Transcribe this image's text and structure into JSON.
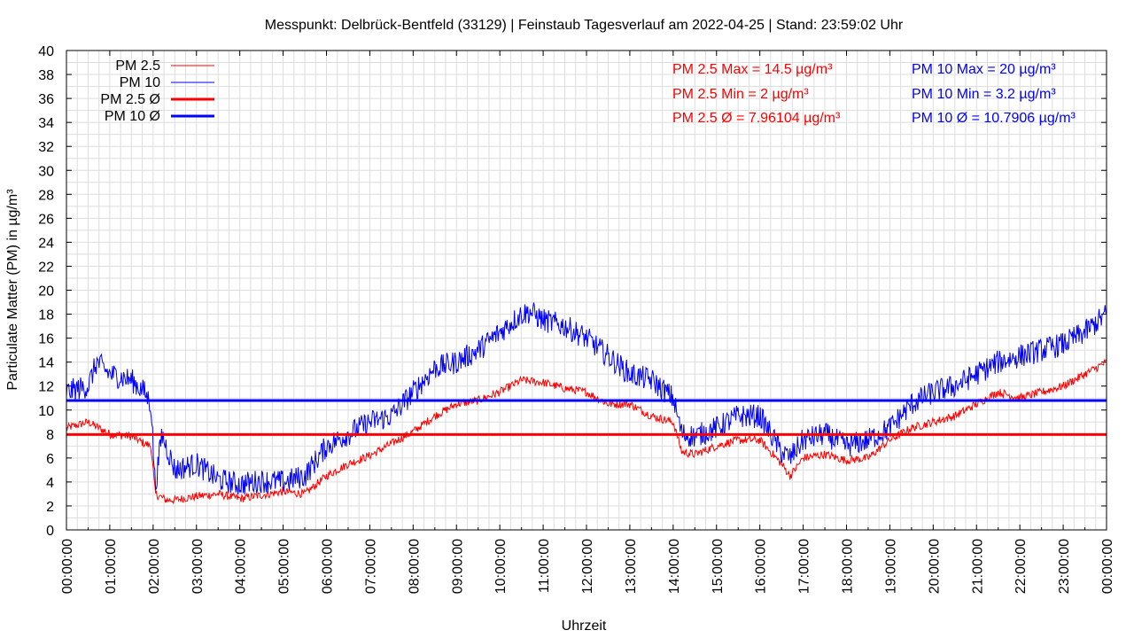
{
  "chart_data": {
    "type": "line",
    "title": "Messpunkt: Delbrück-Bentfeld (33129) | Feinstaub Tagesverlauf am 2022-04-25 | Stand: 23:59:02 Uhr",
    "xlabel": "Uhrzeit",
    "ylabel": "Particulate Matter (PM) in µg/m³",
    "ylim": [
      0,
      40
    ],
    "y_tick_step": 2,
    "x_ticks": [
      "00:00:00",
      "01:00:00",
      "02:00:00",
      "03:00:00",
      "04:00:00",
      "05:00:00",
      "06:00:00",
      "07:00:00",
      "08:00:00",
      "09:00:00",
      "10:00:00",
      "11:00:00",
      "12:00:00",
      "13:00:00",
      "14:00:00",
      "15:00:00",
      "16:00:00",
      "17:00:00",
      "18:00:00",
      "19:00:00",
      "20:00:00",
      "21:00:00",
      "22:00:00",
      "23:00:00",
      "00:00:00"
    ],
    "grid": true,
    "legend_position": "top-left",
    "series": [
      {
        "name": "PM 2.5",
        "color": "#ff0000",
        "hours": [
          0,
          0.5,
          1,
          1.5,
          1.8,
          1.95,
          2.05,
          2.3,
          2.5,
          3,
          3.5,
          4,
          4.5,
          5,
          5.5,
          6,
          6.5,
          7,
          7.5,
          8,
          8.5,
          9,
          9.5,
          10,
          10.5,
          11,
          11.5,
          12,
          12.5,
          13,
          13.5,
          14,
          14.2,
          14.5,
          15,
          15.5,
          16,
          16.5,
          16.7,
          17,
          17.5,
          18,
          18.5,
          19,
          19.5,
          20,
          20.5,
          21,
          21.5,
          22,
          22.5,
          23,
          23.5,
          24
        ],
        "values": [
          8.5,
          9,
          8,
          7.8,
          7.2,
          7,
          3,
          2.5,
          2.5,
          2.8,
          3,
          2.6,
          2.9,
          3.2,
          3,
          4.5,
          5.5,
          6.2,
          7.2,
          8.2,
          9.5,
          10.5,
          10.8,
          11.5,
          12.5,
          12.3,
          11.8,
          11.5,
          10.5,
          10.5,
          9.5,
          9,
          6.5,
          6.3,
          7,
          7.5,
          7.5,
          5.5,
          4.5,
          6,
          6.3,
          5.8,
          6,
          7.5,
          8.5,
          9,
          9.5,
          10.5,
          11.5,
          11,
          11.5,
          12,
          13,
          14
        ]
      },
      {
        "name": "PM 10",
        "color": "#0000ff",
        "hours": [
          0,
          0.5,
          0.7,
          1,
          1.5,
          1.8,
          1.95,
          2.05,
          2.2,
          2.5,
          3,
          3.5,
          4,
          4.5,
          5,
          5.5,
          6,
          6.5,
          7,
          7.5,
          8,
          8.5,
          9,
          9.5,
          10,
          10.5,
          10.7,
          11,
          11.5,
          12,
          12.5,
          13,
          13.5,
          14,
          14.2,
          14.5,
          15,
          15.5,
          16,
          16.5,
          16.7,
          17,
          17.5,
          18,
          18.5,
          19,
          19.5,
          20,
          20.5,
          21,
          21.5,
          22,
          22.5,
          23,
          23.5,
          24
        ],
        "values": [
          11.5,
          12,
          14,
          13,
          12.5,
          11.5,
          10.5,
          3.5,
          8,
          5,
          5.5,
          4.2,
          3.8,
          4.1,
          4,
          4.5,
          7,
          8,
          9,
          9.5,
          11.5,
          13.5,
          14,
          15,
          16.5,
          18,
          18.2,
          17.5,
          17,
          16,
          14.5,
          13,
          12.5,
          11,
          8,
          7.8,
          8.5,
          9.5,
          9.5,
          6.5,
          6,
          7.5,
          8,
          7,
          7.5,
          8.5,
          10.5,
          11.5,
          12,
          13,
          14,
          14.5,
          15,
          15.5,
          16.5,
          18
        ]
      },
      {
        "name": "PM 2.5 Ø",
        "color": "#ff0000",
        "constant": 7.96104
      },
      {
        "name": "PM 10 Ø",
        "color": "#0000ff",
        "constant": 10.7906
      }
    ],
    "annotations": {
      "pm25": [
        "PM 2.5 Max = 14.5 µg/m³",
        "PM 2.5 Min = 2 µg/m³",
        "PM 2.5 Ø = 7.96104 µg/m³"
      ],
      "pm10": [
        "PM 10 Max = 20 µg/m³",
        "PM 10 Min = 3.2 µg/m³",
        "PM 10 Ø = 10.7906 µg/m³"
      ]
    }
  }
}
